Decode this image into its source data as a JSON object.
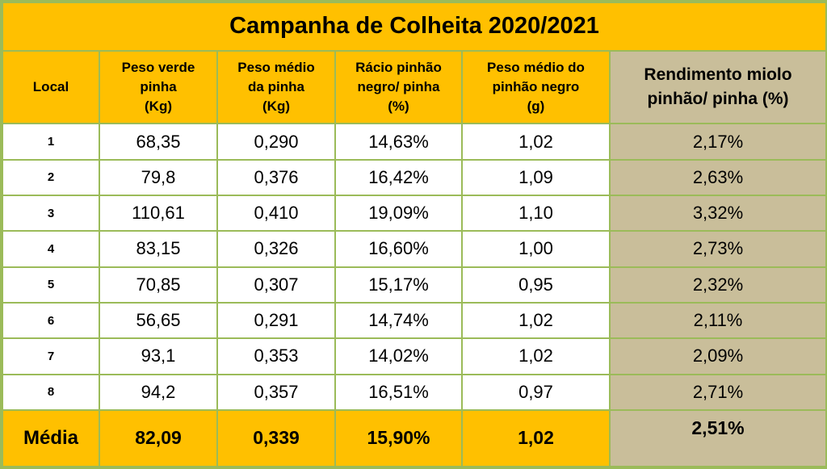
{
  "title": "Campanha de Colheita 2020/2021",
  "headers": {
    "local": "Local",
    "peso_verde": [
      "Peso verde",
      "pinha",
      "(Kg)"
    ],
    "peso_medio": [
      "Peso médio",
      "da pinha",
      "(Kg)"
    ],
    "racio": [
      "Rácio pinhão",
      "negro/ pinha",
      "(%)"
    ],
    "peso_pinhao": [
      "Peso médio do",
      "pinhão negro",
      "(g)"
    ],
    "rendimento": [
      "Rendimento miolo",
      "pinhão/ pinha (%)"
    ]
  },
  "rows": [
    {
      "local": "1",
      "peso_verde": "68,35",
      "peso_medio": "0,290",
      "racio": "14,63%",
      "peso_pinhao": "1,02",
      "rendimento": "2,17%"
    },
    {
      "local": "2",
      "peso_verde": "79,8",
      "peso_medio": "0,376",
      "racio": "16,42%",
      "peso_pinhao": "1,09",
      "rendimento": "2,63%"
    },
    {
      "local": "3",
      "peso_verde": "110,61",
      "peso_medio": "0,410",
      "racio": "19,09%",
      "peso_pinhao": "1,10",
      "rendimento": "3,32%"
    },
    {
      "local": "4",
      "peso_verde": "83,15",
      "peso_medio": "0,326",
      "racio": "16,60%",
      "peso_pinhao": "1,00",
      "rendimento": "2,73%"
    },
    {
      "local": "5",
      "peso_verde": "70,85",
      "peso_medio": "0,307",
      "racio": "15,17%",
      "peso_pinhao": "0,95",
      "rendimento": "2,32%"
    },
    {
      "local": "6",
      "peso_verde": "56,65",
      "peso_medio": "0,291",
      "racio": "14,74%",
      "peso_pinhao": "1,02",
      "rendimento": "2,11%"
    },
    {
      "local": "7",
      "peso_verde": "93,1",
      "peso_medio": "0,353",
      "racio": "14,02%",
      "peso_pinhao": "1,02",
      "rendimento": "2,09%"
    },
    {
      "local": "8",
      "peso_verde": "94,2",
      "peso_medio": "0,357",
      "racio": "16,51%",
      "peso_pinhao": "0,97",
      "rendimento": "2,71%"
    }
  ],
  "media": {
    "label": "Média",
    "peso_verde": "82,09",
    "peso_medio": "0,339",
    "racio": "15,90%",
    "peso_pinhao": "1,02",
    "rendimento": "2,51%"
  },
  "colors": {
    "header": "#ffc000",
    "grid": "#9bbb59",
    "rendimento_bg": "#c9be9a",
    "body": "#ffffff"
  }
}
